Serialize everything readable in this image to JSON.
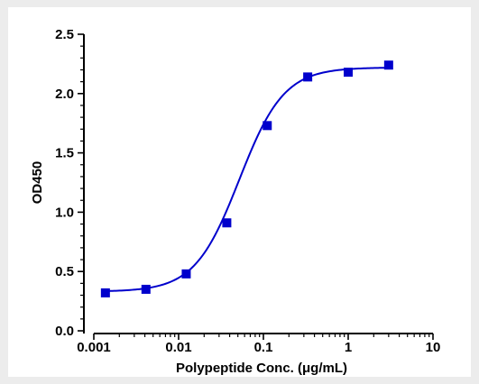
{
  "chart_data": {
    "type": "scatter",
    "title": "",
    "xlabel": "Polypeptide Conc. (μg/mL)",
    "ylabel": "OD450",
    "x_scale": "log",
    "xlim": [
      0.001,
      10
    ],
    "ylim": [
      0.0,
      2.5
    ],
    "x_ticks": [
      0.001,
      0.01,
      0.1,
      1,
      10
    ],
    "x_tick_labels": [
      "0.001",
      "0.01",
      "0.1",
      "1",
      "10"
    ],
    "y_ticks": [
      0.0,
      0.5,
      1.0,
      1.5,
      2.0,
      2.5
    ],
    "y_tick_labels": [
      "0.0",
      "0.5",
      "1.0",
      "1.5",
      "2.0",
      "2.5"
    ],
    "grid": false,
    "legend": "none",
    "colors": {
      "series": "#0000cc",
      "axes": "#000000"
    },
    "series": [
      {
        "marker": "square",
        "fit": "4PL sigmoid curve",
        "x": [
          0.00137,
          0.00412,
          0.0123,
          0.037,
          0.111,
          0.333,
          1.0,
          3.0
        ],
        "y": [
          0.32,
          0.35,
          0.48,
          0.91,
          1.73,
          2.14,
          2.18,
          2.24
        ]
      }
    ],
    "fit_curve": {
      "bottom": 0.33,
      "top": 2.22,
      "ec50": 0.052,
      "hill": 1.65
    }
  }
}
